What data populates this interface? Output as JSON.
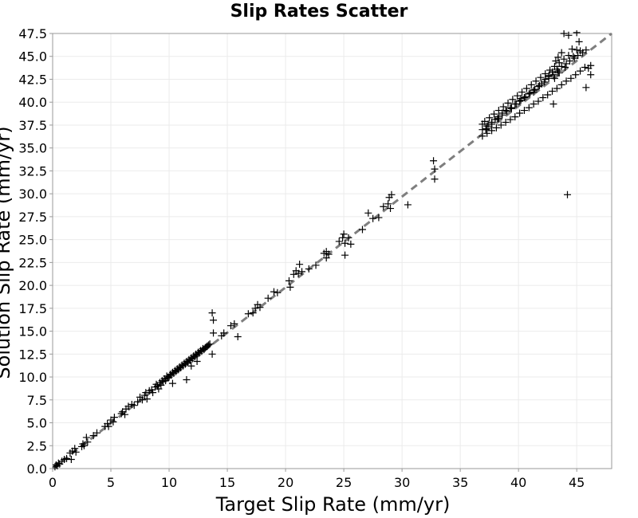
{
  "chart_data": {
    "type": "scatter",
    "title": "Slip Rates Scatter",
    "xlabel": "Target Slip Rate (mm/yr)",
    "ylabel": "Solution Slip Rate (mm/yr)",
    "xlim": [
      0,
      48
    ],
    "ylim": [
      0,
      47.5
    ],
    "x_ticks": [
      "0",
      "5",
      "10",
      "15",
      "20",
      "25",
      "30",
      "35",
      "40",
      "45"
    ],
    "y_ticks": [
      "0.0",
      "2.5",
      "5.0",
      "7.5",
      "10.0",
      "12.5",
      "15.0",
      "17.5",
      "20.0",
      "22.5",
      "25.0",
      "27.5",
      "30.0",
      "32.5",
      "35.0",
      "37.5",
      "40.0",
      "42.5",
      "45.0",
      "47.5"
    ],
    "grid": true,
    "marker": "+",
    "colors": {
      "points": "#000000",
      "reference_line": "#7f7f7f",
      "grid": "#ebebeb",
      "axes": "#999999"
    },
    "reference_line": {
      "style": "dashed",
      "x": [
        0,
        48
      ],
      "y": [
        0,
        48
      ]
    },
    "series": [
      {
        "values": [
          [
            0.2,
            0.2
          ],
          [
            0.3,
            0.4
          ],
          [
            0.4,
            0.3
          ],
          [
            0.5,
            0.6
          ],
          [
            0.6,
            0.5
          ],
          [
            0.8,
            0.8
          ],
          [
            1.0,
            1.0
          ],
          [
            1.2,
            1.1
          ],
          [
            1.5,
            1.7
          ],
          [
            1.6,
            1.0
          ],
          [
            1.7,
            1.9
          ],
          [
            1.9,
            2.2
          ],
          [
            2.0,
            1.8
          ],
          [
            2.5,
            2.4
          ],
          [
            2.6,
            2.7
          ],
          [
            2.7,
            2.5
          ],
          [
            2.9,
            3.4
          ],
          [
            3.0,
            2.9
          ],
          [
            3.5,
            3.6
          ],
          [
            3.8,
            3.9
          ],
          [
            4.5,
            4.6
          ],
          [
            4.7,
            4.9
          ],
          [
            4.8,
            4.6
          ],
          [
            5.0,
            5.3
          ],
          [
            5.2,
            5.1
          ],
          [
            5.3,
            5.6
          ],
          [
            5.9,
            6.0
          ],
          [
            6.0,
            6.2
          ],
          [
            6.2,
            5.9
          ],
          [
            6.3,
            6.5
          ],
          [
            6.5,
            6.8
          ],
          [
            6.8,
            7.0
          ],
          [
            7.0,
            6.9
          ],
          [
            7.3,
            7.3
          ],
          [
            7.5,
            7.8
          ],
          [
            7.7,
            7.5
          ],
          [
            7.9,
            8.0
          ],
          [
            8.0,
            8.3
          ],
          [
            8.1,
            7.6
          ],
          [
            8.3,
            8.5
          ],
          [
            8.5,
            8.6
          ],
          [
            8.6,
            8.3
          ],
          [
            8.8,
            8.9
          ],
          [
            8.9,
            9.2
          ],
          [
            9.0,
            9.0
          ],
          [
            9.1,
            8.7
          ],
          [
            9.2,
            9.4
          ],
          [
            9.3,
            9.1
          ],
          [
            9.4,
            9.6
          ],
          [
            9.5,
            9.5
          ],
          [
            9.6,
            9.8
          ],
          [
            9.7,
            9.6
          ],
          [
            9.8,
            10.1
          ],
          [
            9.9,
            9.9
          ],
          [
            10.0,
            10.0
          ],
          [
            10.1,
            10.3
          ],
          [
            10.2,
            10.2
          ],
          [
            10.3,
            10.5
          ],
          [
            10.4,
            10.4
          ],
          [
            10.5,
            10.7
          ],
          [
            10.6,
            10.6
          ],
          [
            10.7,
            10.9
          ],
          [
            10.8,
            10.8
          ],
          [
            10.9,
            11.1
          ],
          [
            11.0,
            11.0
          ],
          [
            11.1,
            11.3
          ],
          [
            11.2,
            11.2
          ],
          [
            11.3,
            11.5
          ],
          [
            11.4,
            11.4
          ],
          [
            11.5,
            11.7
          ],
          [
            11.6,
            11.6
          ],
          [
            11.7,
            11.9
          ],
          [
            11.8,
            11.8
          ],
          [
            11.9,
            12.1
          ],
          [
            12.0,
            12.0
          ],
          [
            12.1,
            12.3
          ],
          [
            12.2,
            12.2
          ],
          [
            12.3,
            12.5
          ],
          [
            12.4,
            12.4
          ],
          [
            12.5,
            12.7
          ],
          [
            12.6,
            12.6
          ],
          [
            12.7,
            12.9
          ],
          [
            12.8,
            12.8
          ],
          [
            12.9,
            13.1
          ],
          [
            13.0,
            13.0
          ],
          [
            13.1,
            13.2
          ],
          [
            13.2,
            13.3
          ],
          [
            13.3,
            13.4
          ],
          [
            13.4,
            13.5
          ],
          [
            13.5,
            13.6
          ],
          [
            11.5,
            9.7
          ],
          [
            11.9,
            11.2
          ],
          [
            12.4,
            11.7
          ],
          [
            10.3,
            9.3
          ],
          [
            13.7,
            17.0
          ],
          [
            13.8,
            16.2
          ],
          [
            13.8,
            14.8
          ],
          [
            13.7,
            12.5
          ],
          [
            14.5,
            14.5
          ],
          [
            14.7,
            14.8
          ],
          [
            15.3,
            15.6
          ],
          [
            15.6,
            15.8
          ],
          [
            15.9,
            14.4
          ],
          [
            16.8,
            16.9
          ],
          [
            17.2,
            17.0
          ],
          [
            17.4,
            17.5
          ],
          [
            17.6,
            17.9
          ],
          [
            17.8,
            17.6
          ],
          [
            18.5,
            18.6
          ],
          [
            19.0,
            19.3
          ],
          [
            19.3,
            19.2
          ],
          [
            20.3,
            20.5
          ],
          [
            20.4,
            19.8
          ],
          [
            20.7,
            21.2
          ],
          [
            20.9,
            21.6
          ],
          [
            21.1,
            21.3
          ],
          [
            21.2,
            22.3
          ],
          [
            21.4,
            21.5
          ],
          [
            22.0,
            21.8
          ],
          [
            22.6,
            22.2
          ],
          [
            23.3,
            23.5
          ],
          [
            23.5,
            23.7
          ],
          [
            23.5,
            23.0
          ],
          [
            23.7,
            23.4
          ],
          [
            24.6,
            24.8
          ],
          [
            24.9,
            25.2
          ],
          [
            25.0,
            25.6
          ],
          [
            25.1,
            24.6
          ],
          [
            25.1,
            23.3
          ],
          [
            25.4,
            25.2
          ],
          [
            25.6,
            24.5
          ],
          [
            26.6,
            26.1
          ],
          [
            27.1,
            27.9
          ],
          [
            27.5,
            27.3
          ],
          [
            28.0,
            27.4
          ],
          [
            28.4,
            28.6
          ],
          [
            28.8,
            28.9
          ],
          [
            28.9,
            29.6
          ],
          [
            29.0,
            28.4
          ],
          [
            29.1,
            29.9
          ],
          [
            30.5,
            28.8
          ],
          [
            32.7,
            33.6
          ],
          [
            32.8,
            32.7
          ],
          [
            32.8,
            31.6
          ],
          [
            36.9,
            37.6
          ],
          [
            37.2,
            37.1
          ],
          [
            37.4,
            37.6
          ],
          [
            37.7,
            37.8
          ],
          [
            38.0,
            38.1
          ],
          [
            38.3,
            38.4
          ],
          [
            38.6,
            38.8
          ],
          [
            38.9,
            39.1
          ],
          [
            39.3,
            39.4
          ],
          [
            39.7,
            39.8
          ],
          [
            40.1,
            40.1
          ],
          [
            40.5,
            40.5
          ],
          [
            40.9,
            40.9
          ],
          [
            41.3,
            41.3
          ],
          [
            41.7,
            41.7
          ],
          [
            42.0,
            42.0
          ],
          [
            42.3,
            42.5
          ],
          [
            42.6,
            42.9
          ],
          [
            42.9,
            43.3
          ],
          [
            43.3,
            43.6
          ],
          [
            43.7,
            43.9
          ],
          [
            44.1,
            44.2
          ],
          [
            44.4,
            44.5
          ],
          [
            44.8,
            44.8
          ],
          [
            45.1,
            45.1
          ],
          [
            45.5,
            45.4
          ],
          [
            45.8,
            45.7
          ],
          [
            36.9,
            37.0
          ],
          [
            37.3,
            37.4
          ],
          [
            37.7,
            37.8
          ],
          [
            38.2,
            38.2
          ],
          [
            38.6,
            38.6
          ],
          [
            39.0,
            39.0
          ],
          [
            39.4,
            39.4
          ],
          [
            39.8,
            39.8
          ],
          [
            40.2,
            40.2
          ],
          [
            40.6,
            40.6
          ],
          [
            41.0,
            41.0
          ],
          [
            41.4,
            41.4
          ],
          [
            41.8,
            41.8
          ],
          [
            42.2,
            42.2
          ],
          [
            42.6,
            42.6
          ],
          [
            43.0,
            43.0
          ],
          [
            43.4,
            43.4
          ],
          [
            36.9,
            36.3
          ],
          [
            37.3,
            36.6
          ],
          [
            37.7,
            36.9
          ],
          [
            38.1,
            37.2
          ],
          [
            38.5,
            37.5
          ],
          [
            38.9,
            37.8
          ],
          [
            39.3,
            38.1
          ],
          [
            39.7,
            38.4
          ],
          [
            40.1,
            38.8
          ],
          [
            40.5,
            39.1
          ],
          [
            40.9,
            39.4
          ],
          [
            41.3,
            39.8
          ],
          [
            41.7,
            40.1
          ],
          [
            42.1,
            40.5
          ],
          [
            42.5,
            40.8
          ],
          [
            42.9,
            41.2
          ],
          [
            43.3,
            41.5
          ],
          [
            43.7,
            41.9
          ],
          [
            44.1,
            42.3
          ],
          [
            44.5,
            42.6
          ],
          [
            44.9,
            43.0
          ],
          [
            45.3,
            43.4
          ],
          [
            45.7,
            43.8
          ],
          [
            46.0,
            43.7
          ],
          [
            46.2,
            43.0
          ],
          [
            37.2,
            37.0
          ],
          [
            37.7,
            37.6
          ],
          [
            38.3,
            38.2
          ],
          [
            39.4,
            39.3
          ],
          [
            40.2,
            40.4
          ],
          [
            41.3,
            41.1
          ],
          [
            42.6,
            42.8
          ],
          [
            43.4,
            43.2
          ],
          [
            44.0,
            43.8
          ],
          [
            44.7,
            45.0
          ],
          [
            45.3,
            45.6
          ],
          [
            46.2,
            44.0
          ],
          [
            37.1,
            37.9
          ],
          [
            37.5,
            38.3
          ],
          [
            37.9,
            38.7
          ],
          [
            38.3,
            39.1
          ],
          [
            38.7,
            39.5
          ],
          [
            39.1,
            39.9
          ],
          [
            39.5,
            40.3
          ],
          [
            39.9,
            40.7
          ],
          [
            40.3,
            41.1
          ],
          [
            40.7,
            41.5
          ],
          [
            41.1,
            41.9
          ],
          [
            41.5,
            42.3
          ],
          [
            41.9,
            42.7
          ],
          [
            42.3,
            43.1
          ],
          [
            42.7,
            43.5
          ],
          [
            43.1,
            43.9
          ],
          [
            43.5,
            44.3
          ],
          [
            43.9,
            44.7
          ],
          [
            44.3,
            45.1
          ],
          [
            43.9,
            47.5
          ],
          [
            44.3,
            47.3
          ],
          [
            45.0,
            47.6
          ],
          [
            45.2,
            46.6
          ],
          [
            45.0,
            45.7
          ],
          [
            43.5,
            43.2
          ],
          [
            43.1,
            42.6
          ],
          [
            43.7,
            45.4
          ],
          [
            43.4,
            44.9
          ],
          [
            43.2,
            44.5
          ],
          [
            44.6,
            45.8
          ],
          [
            43.0,
            39.8
          ],
          [
            45.8,
            41.6
          ],
          [
            44.2,
            29.9
          ]
        ]
      }
    ]
  }
}
